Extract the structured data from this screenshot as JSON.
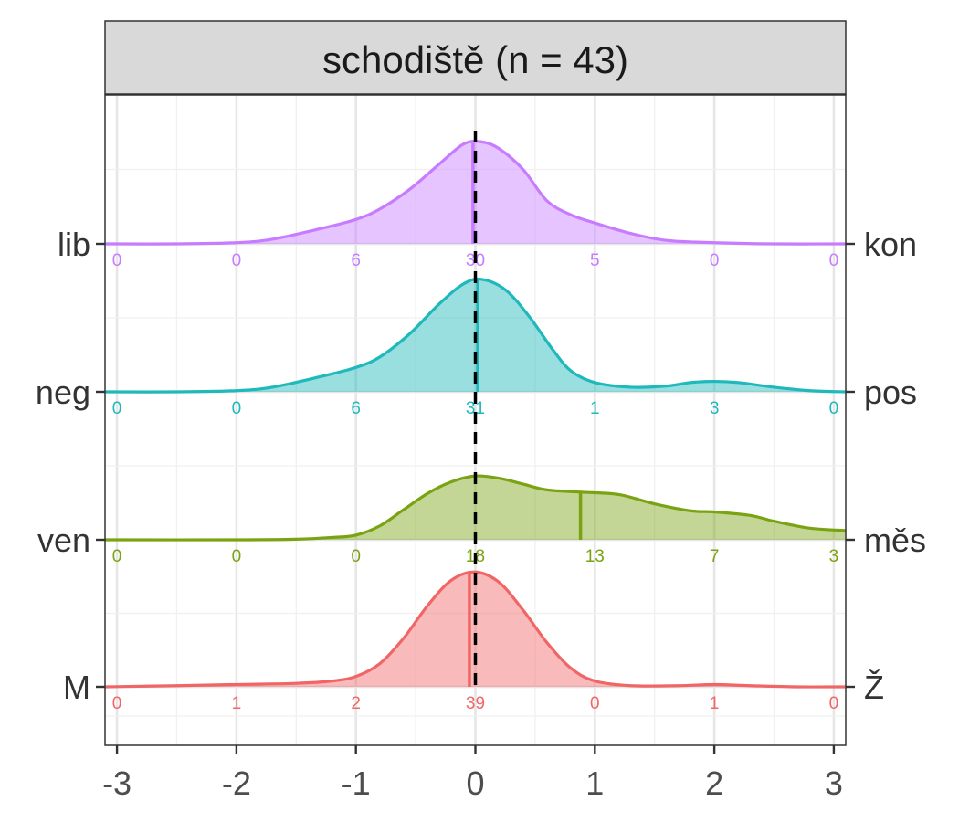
{
  "chart_data": {
    "type": "ridgeline-density",
    "facet_title": "schodiště (n = 43)",
    "xlim": [
      -3.1,
      3.1
    ],
    "x_ticks": [
      -3,
      -2,
      -1,
      0,
      1,
      2,
      3
    ],
    "x_tick_labels": [
      "-3",
      "-2",
      "-1",
      "0",
      "1",
      "2",
      "3"
    ],
    "reference_line_x": 0,
    "count_positions": [
      -3,
      -2,
      -1,
      0,
      1,
      2,
      3
    ],
    "grid": true,
    "rows": [
      {
        "left_label": "lib",
        "right_label": "kon",
        "color": "#c77cff",
        "mean": -0.02,
        "counts": [
          "0",
          "0",
          "6",
          "30",
          "5",
          "0",
          "0"
        ],
        "density": [
          [
            -3.1,
            0
          ],
          [
            -2.5,
            0
          ],
          [
            -2,
            0.01
          ],
          [
            -1.7,
            0.04
          ],
          [
            -1.3,
            0.13
          ],
          [
            -1,
            0.21
          ],
          [
            -0.8,
            0.3
          ],
          [
            -0.55,
            0.47
          ],
          [
            -0.3,
            0.69
          ],
          [
            -0.1,
            0.86
          ],
          [
            0.05,
            0.88
          ],
          [
            0.2,
            0.82
          ],
          [
            0.4,
            0.64
          ],
          [
            0.6,
            0.37
          ],
          [
            0.8,
            0.25
          ],
          [
            1,
            0.18
          ],
          [
            1.3,
            0.09
          ],
          [
            1.6,
            0.03
          ],
          [
            2,
            0.01
          ],
          [
            2.5,
            0
          ],
          [
            3.1,
            0
          ]
        ]
      },
      {
        "left_label": "neg",
        "right_label": "pos",
        "color": "#1fb8bb",
        "mean": 0.02,
        "counts": [
          "0",
          "0",
          "6",
          "31",
          "1",
          "3",
          "0"
        ],
        "density": [
          [
            -3.1,
            0
          ],
          [
            -2.5,
            0
          ],
          [
            -2,
            0.01
          ],
          [
            -1.7,
            0.04
          ],
          [
            -1.3,
            0.13
          ],
          [
            -1,
            0.21
          ],
          [
            -0.8,
            0.3
          ],
          [
            -0.55,
            0.5
          ],
          [
            -0.3,
            0.76
          ],
          [
            -0.1,
            0.93
          ],
          [
            0.05,
            0.97
          ],
          [
            0.25,
            0.88
          ],
          [
            0.45,
            0.65
          ],
          [
            0.65,
            0.36
          ],
          [
            0.8,
            0.18
          ],
          [
            1,
            0.08
          ],
          [
            1.3,
            0.04
          ],
          [
            1.6,
            0.05
          ],
          [
            1.8,
            0.08
          ],
          [
            2,
            0.09
          ],
          [
            2.2,
            0.08
          ],
          [
            2.5,
            0.04
          ],
          [
            2.8,
            0.01
          ],
          [
            3.1,
            0
          ]
        ]
      },
      {
        "left_label": "ven",
        "right_label": "měs",
        "color": "#7aa313",
        "mean": 0.88,
        "counts": [
          "0",
          "0",
          "0",
          "18",
          "13",
          "7",
          "3"
        ],
        "density": [
          [
            -3.1,
            0
          ],
          [
            -2,
            0
          ],
          [
            -1.5,
            0.005
          ],
          [
            -1.2,
            0.02
          ],
          [
            -1,
            0.04
          ],
          [
            -0.8,
            0.12
          ],
          [
            -0.6,
            0.26
          ],
          [
            -0.4,
            0.4
          ],
          [
            -0.2,
            0.5
          ],
          [
            0,
            0.55
          ],
          [
            0.2,
            0.53
          ],
          [
            0.4,
            0.48
          ],
          [
            0.6,
            0.43
          ],
          [
            0.9,
            0.41
          ],
          [
            1.2,
            0.39
          ],
          [
            1.5,
            0.31
          ],
          [
            1.8,
            0.25
          ],
          [
            2,
            0.24
          ],
          [
            2.3,
            0.21
          ],
          [
            2.5,
            0.16
          ],
          [
            2.8,
            0.1
          ],
          [
            3.1,
            0.08
          ]
        ]
      },
      {
        "left_label": "M",
        "right_label": "Ž",
        "color": "#f06666",
        "mean": -0.05,
        "counts": [
          "0",
          "1",
          "2",
          "39",
          "0",
          "1",
          "0"
        ],
        "density": [
          [
            -3.1,
            0
          ],
          [
            -2.5,
            0.01
          ],
          [
            -2,
            0.02
          ],
          [
            -1.5,
            0.03
          ],
          [
            -1.2,
            0.05
          ],
          [
            -1,
            0.09
          ],
          [
            -0.8,
            0.2
          ],
          [
            -0.6,
            0.42
          ],
          [
            -0.4,
            0.7
          ],
          [
            -0.2,
            0.92
          ],
          [
            0,
            0.99
          ],
          [
            0.2,
            0.9
          ],
          [
            0.4,
            0.66
          ],
          [
            0.6,
            0.38
          ],
          [
            0.8,
            0.16
          ],
          [
            1,
            0.05
          ],
          [
            1.3,
            0.01
          ],
          [
            1.7,
            0.01
          ],
          [
            2,
            0.02
          ],
          [
            2.3,
            0.01
          ],
          [
            2.7,
            0
          ],
          [
            3.1,
            0
          ]
        ]
      }
    ]
  }
}
